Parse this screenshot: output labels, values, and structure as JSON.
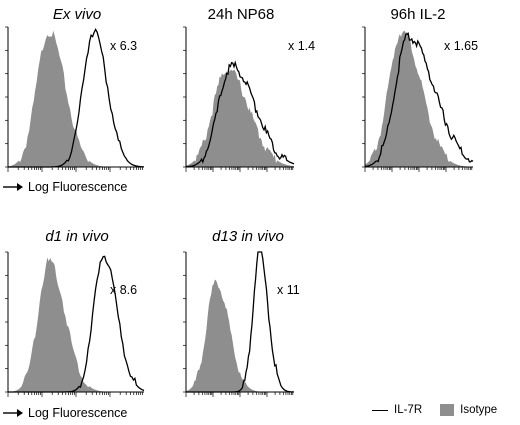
{
  "chart_data": [
    {
      "type": "area",
      "title": "Ex vivo",
      "title_italic": true,
      "fold_label": "x 6.3",
      "isotype_peak": 0.26,
      "il7r_peak": 0.55
    },
    {
      "type": "area",
      "title": "24h NP68",
      "title_italic": false,
      "fold_label": "x 1.4",
      "isotype_peak": 0.42,
      "il7r_peak": 0.44
    },
    {
      "type": "area",
      "title": "96h IL-2",
      "title_italic": false,
      "fold_label": "x 1.65",
      "isotype_peak": 0.4,
      "il7r_peak": 0.45
    },
    {
      "type": "area",
      "title": "d1 in vivo",
      "title_italic": true,
      "fold_label": "x 8.6",
      "isotype_peak": 0.26,
      "il7r_peak": 0.58
    },
    {
      "type": "area",
      "title": "d13 in vivo",
      "title_italic": true,
      "fold_label": "x 11",
      "isotype_peak": 0.26,
      "il7r_peak": 0.6
    }
  ],
  "axis_note": {
    "row1": "Log Fluorescence",
    "row2": "Log Fluorescence"
  },
  "legend": {
    "line_label": "IL-7R",
    "fill_label": "Isotype",
    "fill_color": "#8e8e8e"
  },
  "colors": {
    "isotype_fill": "#8e8e8e",
    "il7r_line": "#000000"
  }
}
